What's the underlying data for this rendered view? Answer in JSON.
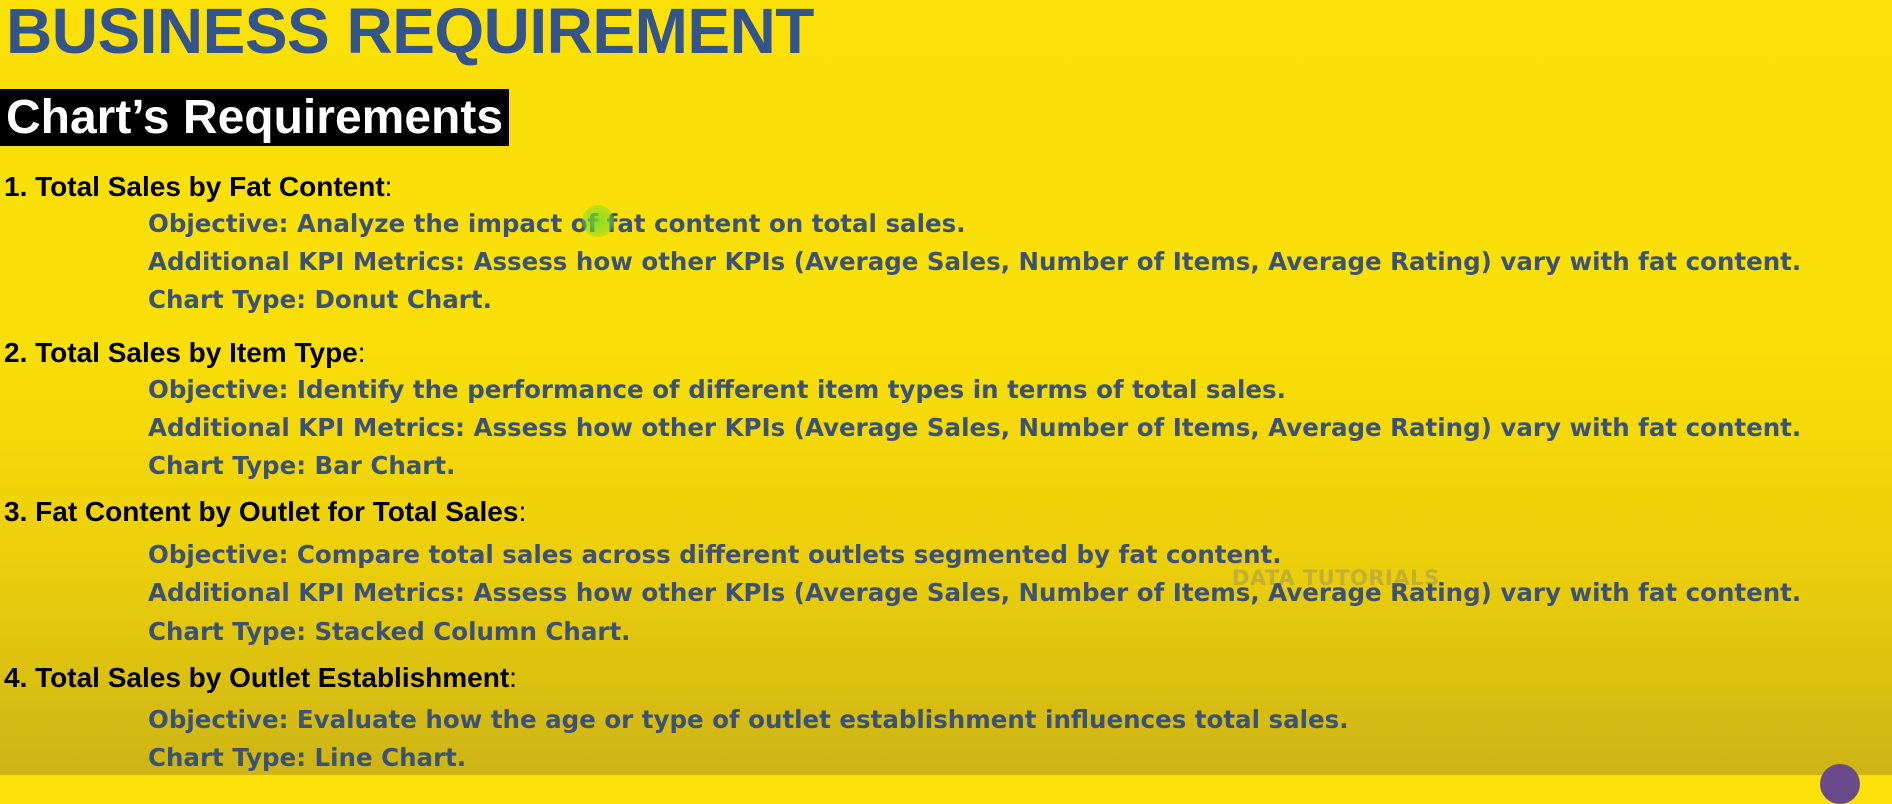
{
  "page": {
    "title": "BUSINESS REQUIREMENT",
    "section_heading": "Chart’s Requirements",
    "watermark": "DATA TUTORIALS"
  },
  "requirements": [
    {
      "number": "1.",
      "title": "Total Sales by Fat Content",
      "suffix": ":",
      "objective": "Objective: Analyze the impact of fat content on total sales.",
      "kpi": "Additional KPI Metrics: Assess how other KPIs (Average Sales, Number of Items, Average Rating) vary with fat content.",
      "chart_type": "Chart Type: Donut Chart."
    },
    {
      "number": "2.",
      "title": "Total Sales by Item Type",
      "suffix": ":",
      "objective": "Objective: Identify the performance of different item types in terms of total sales.",
      "kpi": "Additional KPI Metrics: Assess how other KPIs (Average Sales, Number of Items, Average Rating) vary with fat content.",
      "chart_type": "Chart Type: Bar Chart."
    },
    {
      "number": "3.",
      "title": "Fat Content by Outlet for Total Sales",
      "suffix": ":",
      "objective": "Objective: Compare total sales across different outlets segmented by fat content.",
      "kpi": "Additional KPI Metrics: Assess how other KPIs (Average Sales, Number of Items, Average Rating) vary with fat content.",
      "chart_type": "Chart Type: Stacked Column Chart."
    },
    {
      "number": "4.",
      "title": "Total Sales by Outlet Establishment",
      "suffix": ":",
      "objective": "Objective: Evaluate how the age or type of outlet establishment influences total sales.",
      "chart_type": "Chart Type: Line Chart."
    }
  ],
  "colors": {
    "background": "#f9de08",
    "title": "#34558b",
    "detail_text": "#3b5275",
    "heading_bg": "#000000",
    "heading_text": "#ffffff"
  }
}
